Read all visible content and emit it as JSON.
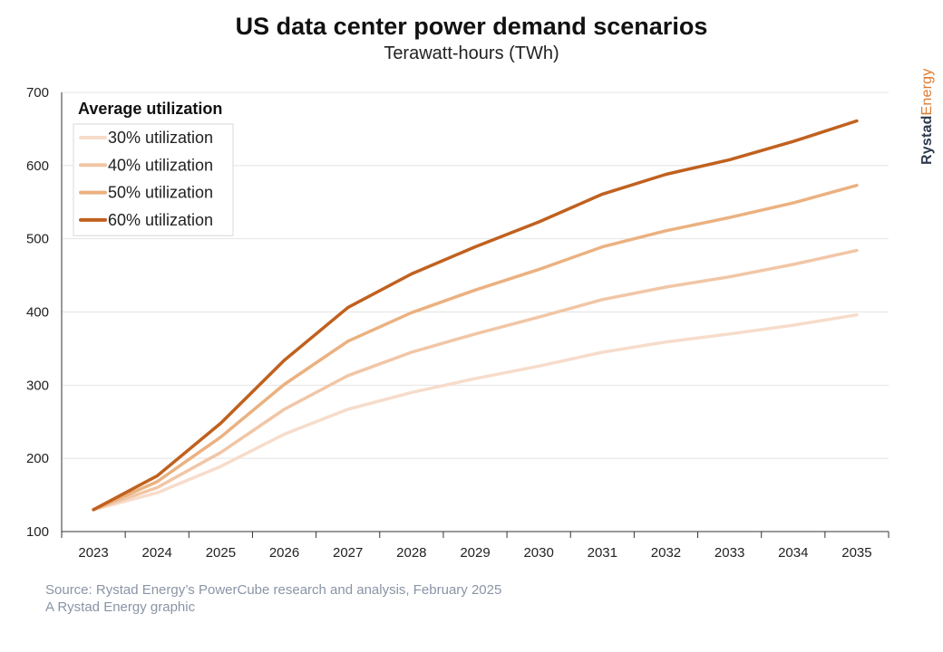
{
  "header": {
    "title": "US data center power demand scenarios",
    "subtitle": "Terawatt-hours (TWh)"
  },
  "brand": {
    "part1": "Rystad",
    "part2": "Energy"
  },
  "footer": {
    "source": "Source: Rystad Energy’s PowerCube research and analysis, February 2025",
    "note": "A Rystad Energy graphic"
  },
  "chart_data": {
    "type": "line",
    "title": "US data center power demand scenarios",
    "subtitle": "Terawatt-hours (TWh)",
    "xlabel": "",
    "ylabel": "",
    "x": [
      "2023",
      "2024",
      "2025",
      "2026",
      "2027",
      "2028",
      "2029",
      "2030",
      "2031",
      "2032",
      "2033",
      "2034",
      "2035"
    ],
    "ylim": [
      100,
      700
    ],
    "yticks": [
      100,
      200,
      300,
      400,
      500,
      600,
      700
    ],
    "grid": true,
    "legend": {
      "title": "Average utilization",
      "placement": "top-left"
    },
    "series": [
      {
        "name": "30% utilization",
        "color": "#f7dccb",
        "values": [
          130,
          153,
          189,
          233,
          267,
          290,
          309,
          326,
          345,
          359,
          370,
          382,
          396
        ]
      },
      {
        "name": "40% utilization",
        "color": "#f1c6a6",
        "values": [
          130,
          160,
          208,
          267,
          313,
          345,
          370,
          393,
          417,
          434,
          448,
          465,
          484
        ]
      },
      {
        "name": "50% utilization",
        "color": "#ebb180",
        "values": [
          130,
          168,
          229,
          301,
          360,
          399,
          430,
          458,
          489,
          511,
          529,
          549,
          573
        ]
      },
      {
        "name": "60% utilization",
        "color": "#c0611f",
        "values": [
          130,
          176,
          248,
          334,
          406,
          452,
          489,
          523,
          561,
          588,
          608,
          633,
          661
        ]
      }
    ]
  }
}
